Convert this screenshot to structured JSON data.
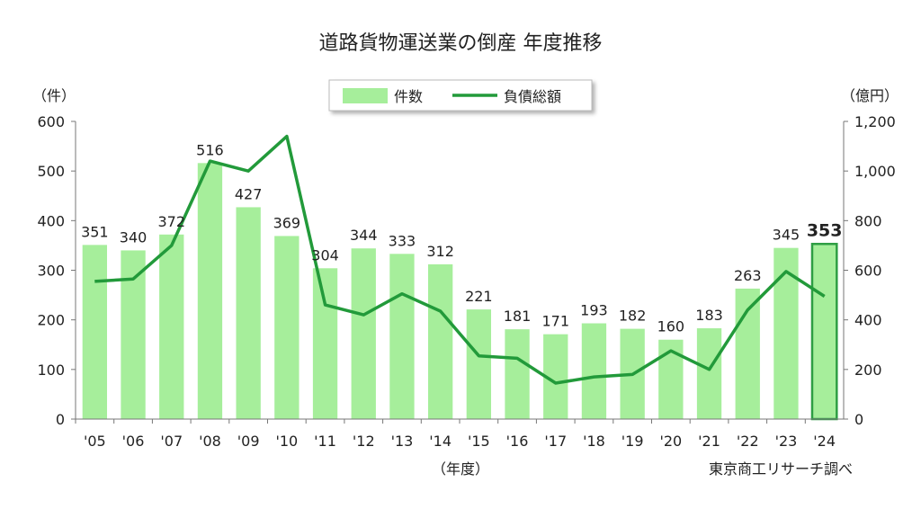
{
  "chart_data": {
    "type": "bar",
    "title": "道路貨物運送業の倒産 年度推移",
    "categories": [
      "'05",
      "'06",
      "'07",
      "'08",
      "'09",
      "'10",
      "'11",
      "'12",
      "'13",
      "'14",
      "'15",
      "'16",
      "'17",
      "'18",
      "'19",
      "'20",
      "'21",
      "'22",
      "'23",
      "'24"
    ],
    "series": [
      {
        "name": "件数",
        "type": "bar",
        "axis": "left",
        "color": "#a6ee9b",
        "highlight_color": "#2e9e44",
        "values": [
          351,
          340,
          372,
          516,
          427,
          369,
          304,
          344,
          333,
          312,
          221,
          181,
          171,
          193,
          182,
          160,
          183,
          263,
          345,
          353
        ]
      },
      {
        "name": "負債総額",
        "type": "line",
        "axis": "right",
        "color": "#229a3a",
        "values": [
          555,
          565,
          700,
          1040,
          1000,
          1140,
          460,
          420,
          505,
          435,
          255,
          245,
          145,
          170,
          180,
          275,
          200,
          440,
          595,
          495
        ]
      }
    ],
    "y_left": {
      "unit_label": "（件）",
      "ylim": [
        0,
        600
      ],
      "ticks": [
        "0",
        "100",
        "200",
        "300",
        "400",
        "500",
        "600"
      ]
    },
    "y_right": {
      "unit_label": "（億円）",
      "ylim": [
        0,
        1200
      ],
      "ticks": [
        "0",
        "200",
        "400",
        "600",
        "800",
        "1,000",
        "1,200"
      ]
    },
    "x_unit_label": "（年度）",
    "highlight_index": 19,
    "source": "東京商工リサーチ調べ",
    "legend_position": "top"
  }
}
